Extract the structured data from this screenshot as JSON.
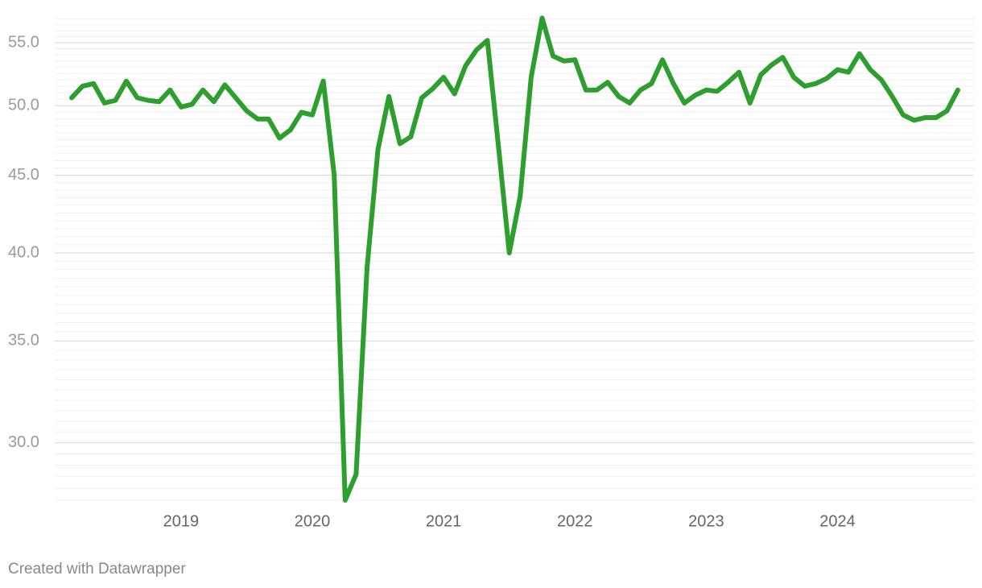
{
  "chart_data": {
    "type": "line",
    "log_y": true,
    "grid": true,
    "minor_grid_step": 0.5,
    "categories": [
      null,
      null,
      null,
      null,
      null,
      null,
      null,
      null,
      null,
      null,
      "2019",
      null,
      null,
      null,
      null,
      null,
      null,
      null,
      null,
      null,
      null,
      null,
      "2020",
      null,
      null,
      null,
      null,
      null,
      null,
      null,
      null,
      null,
      null,
      null,
      "2021",
      null,
      null,
      null,
      null,
      null,
      null,
      null,
      null,
      null,
      null,
      null,
      "2022",
      null,
      null,
      null,
      null,
      null,
      null,
      null,
      null,
      null,
      null,
      null,
      "2023",
      null,
      null,
      null,
      null,
      null,
      null,
      null,
      null,
      null,
      null,
      null,
      "2024",
      null,
      null,
      null,
      null,
      null,
      null,
      null,
      null,
      null,
      null,
      null
    ],
    "series": [
      {
        "color": "#2e9e2e",
        "values": [
          50.6,
          51.5,
          51.7,
          50.2,
          50.4,
          51.9,
          50.6,
          50.4,
          50.3,
          51.2,
          49.9,
          50.1,
          51.2,
          50.3,
          51.6,
          50.6,
          49.6,
          49.0,
          49.0,
          47.6,
          48.2,
          49.5,
          49.3,
          51.9,
          45.0,
          27.5,
          28.6,
          39.1,
          46.8,
          50.7,
          47.2,
          47.7,
          50.6,
          51.3,
          52.2,
          50.9,
          53.1,
          54.4,
          55.2,
          47.1,
          40.0,
          43.6,
          52.2,
          57.1,
          53.9,
          53.5,
          53.6,
          51.2,
          51.2,
          51.8,
          50.7,
          50.2,
          51.2,
          51.7,
          53.6,
          51.7,
          50.2,
          50.8,
          51.2,
          51.1,
          51.8,
          52.6,
          50.2,
          52.4,
          53.2,
          53.8,
          52.2,
          51.5,
          51.7,
          52.1,
          52.8,
          52.6,
          54.1,
          52.8,
          52.0,
          50.7,
          49.3,
          48.9,
          49.1,
          49.1,
          49.6,
          51.2
        ]
      }
    ],
    "ylim": [
      27.3,
      57.3
    ],
    "yticks": [
      {
        "value": 30,
        "label": "30.0"
      },
      {
        "value": 35,
        "label": "35.0"
      },
      {
        "value": 40,
        "label": "40.0"
      },
      {
        "value": 45,
        "label": "45.0"
      },
      {
        "value": 50,
        "label": "50.0"
      },
      {
        "value": 55,
        "label": "55.0"
      }
    ]
  },
  "footer": "Created with Datawrapper"
}
